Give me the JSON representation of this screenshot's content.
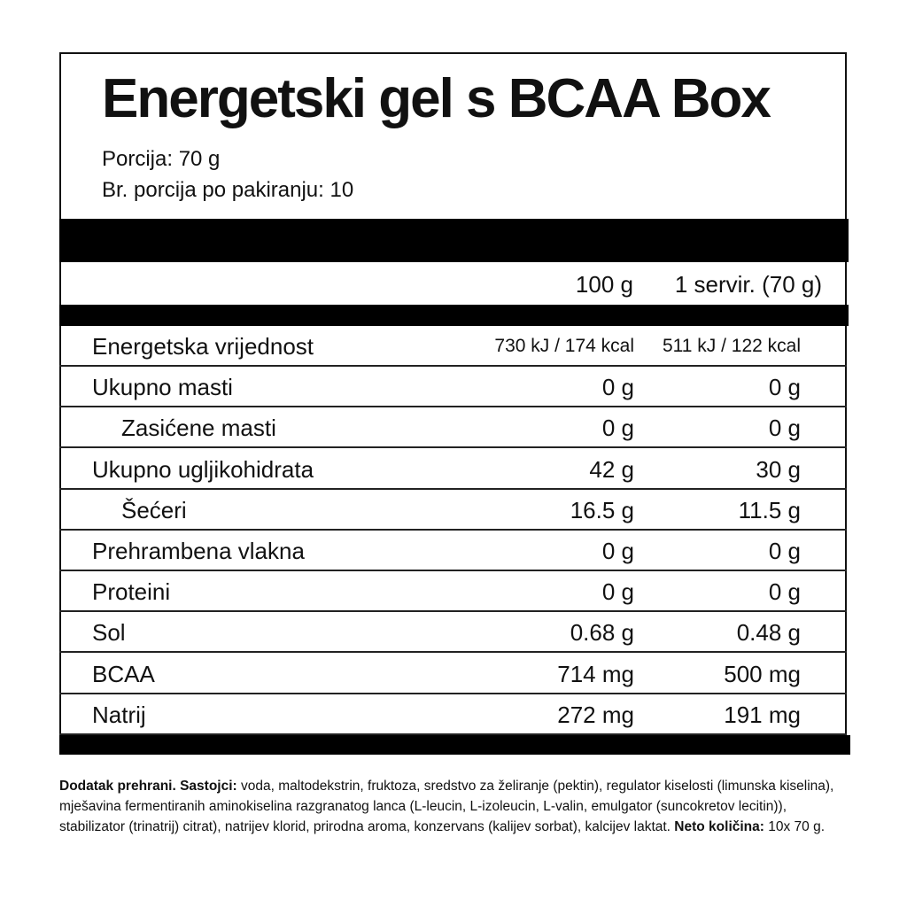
{
  "title": "Energetski gel s BCAA Box",
  "serving_size": "Porcija: 70 g",
  "servings_per_package": "Br. porcija po pakiranju: 10",
  "columns": {
    "per100": "100 g",
    "perServing": "1 servir. (70 g)"
  },
  "rows": [
    {
      "label": "Energetska vrijednost",
      "per100": "730 kJ / 174 kcal",
      "perServing": "511 kJ / 122 kcal"
    },
    {
      "label": "Ukupno masti",
      "per100": "0 g",
      "perServing": "0 g"
    },
    {
      "label": "Zasićene masti",
      "per100": "0 g",
      "perServing": "0 g"
    },
    {
      "label": "Ukupno ugljikohidrata",
      "per100": "42 g",
      "perServing": "30 g"
    },
    {
      "label": "Šećeri",
      "per100": "16.5 g",
      "perServing": "11.5 g"
    },
    {
      "label": "Prehrambena vlakna",
      "per100": "0 g",
      "perServing": "0 g"
    },
    {
      "label": "Proteini",
      "per100": "0 g",
      "perServing": "0 g"
    },
    {
      "label": "Sol",
      "per100": "0.68 g",
      "perServing": "0.48 g"
    },
    {
      "label": "BCAA",
      "per100": "714 mg",
      "perServing": "500 mg"
    },
    {
      "label": "Natrij",
      "per100": "272 mg",
      "perServing": "191 mg"
    }
  ],
  "ingredients": {
    "bold1": "Dodatak prehrani. Sastojci:",
    "text": " voda, maltodekstrin, fruktoza, sredstvo za želiranje (pektin), regulator kiselosti (limunska kiselina), mješavina fermentiranih aminokiselina razgranatog lanca (L-leucin, L-izoleucin, L-valin, emulgator (suncokretov lecitin)), stabilizator (trinatrij) citrat), natrijev klorid, prirodna aroma, konzervans (kalijev sorbat), kalcijev laktat. ",
    "bold2": "Neto količina:",
    "net": " 10x 70 g."
  }
}
